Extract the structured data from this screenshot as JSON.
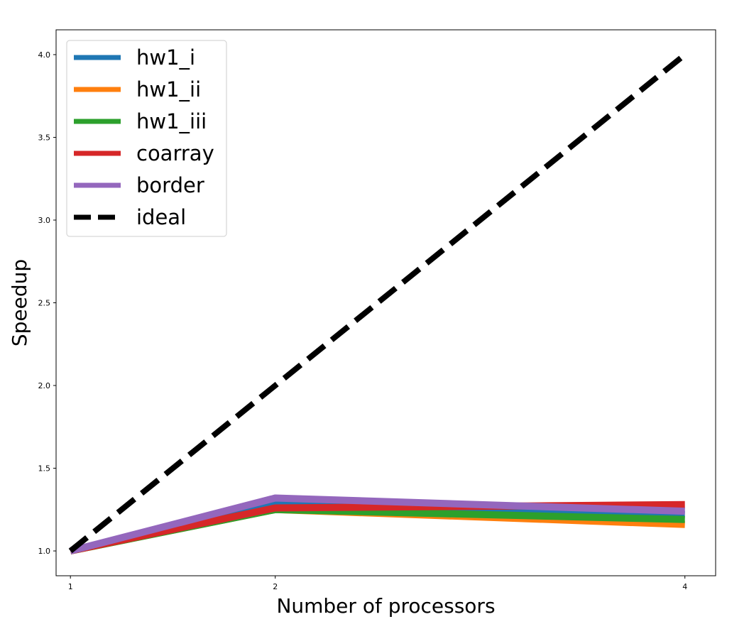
{
  "chart_data": {
    "type": "line",
    "title": "",
    "xlabel": "Number of processors",
    "ylabel": "Speedup",
    "x": [
      1,
      2,
      4
    ],
    "xticks": [
      "1",
      "2",
      "4"
    ],
    "yticks": [
      "1.0",
      "1.5",
      "2.0",
      "2.5",
      "3.0",
      "3.5",
      "4.0"
    ],
    "xlim": [
      0.93,
      4.15
    ],
    "ylim": [
      0.85,
      4.15
    ],
    "grid": false,
    "legend_position": "top-left",
    "series": [
      {
        "name": "hw1_i",
        "values": [
          1.0,
          1.29,
          1.22
        ],
        "color": "#1f77b4",
        "style": "solid"
      },
      {
        "name": "hw1_ii",
        "values": [
          1.0,
          1.25,
          1.16
        ],
        "color": "#ff7f0e",
        "style": "solid"
      },
      {
        "name": "hw1_iii",
        "values": [
          1.0,
          1.25,
          1.19
        ],
        "color": "#2ca02c",
        "style": "solid"
      },
      {
        "name": "coarray",
        "values": [
          1.0,
          1.26,
          1.28
        ],
        "color": "#d62728",
        "style": "solid"
      },
      {
        "name": "border",
        "values": [
          1.0,
          1.32,
          1.24
        ],
        "color": "#9467bd",
        "style": "solid"
      },
      {
        "name": "ideal",
        "values": [
          1.0,
          2.0,
          4.0
        ],
        "color": "#000000",
        "style": "dashed"
      }
    ]
  }
}
